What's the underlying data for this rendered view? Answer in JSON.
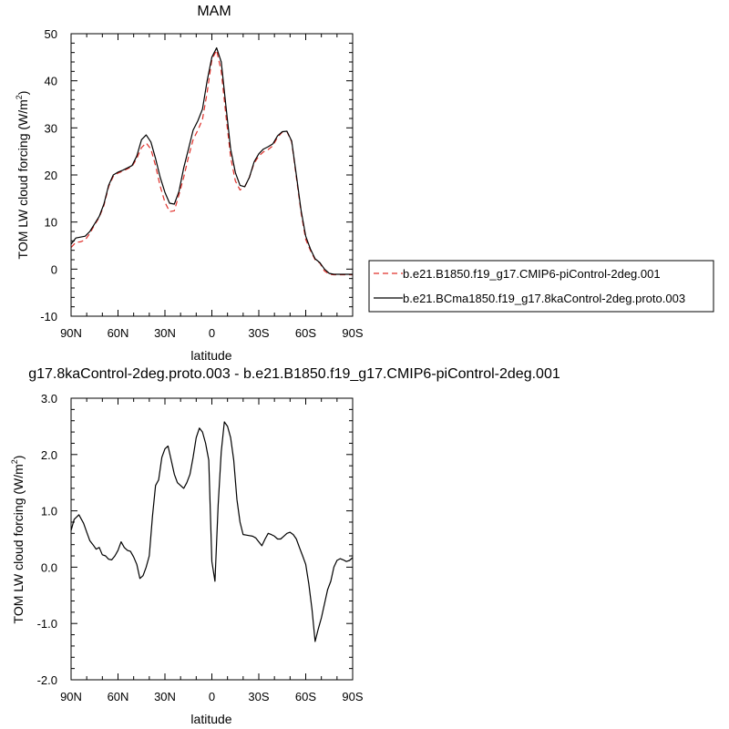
{
  "chart_data": [
    {
      "type": "line",
      "title": "MAM",
      "xlabel": "latitude",
      "ylabel": "TOM LW cloud forcing (W/m",
      "ylabel_sup": "2",
      "ylabel_end": ")",
      "ylim": [
        -10,
        50
      ],
      "xlim": [
        90,
        -90
      ],
      "yticks": [
        -10,
        0,
        10,
        20,
        30,
        40,
        50
      ],
      "ytick_labels": [
        "-10",
        "0",
        "10",
        "20",
        "30",
        "40",
        "50"
      ],
      "xticks": [
        90,
        60,
        30,
        0,
        -30,
        -60,
        -90
      ],
      "xtick_labels": [
        "90N",
        "60N",
        "30N",
        "0",
        "30S",
        "60S",
        "90S"
      ],
      "legend_position": "right",
      "series": [
        {
          "name": "b.e21.B1850.f19_g17.CMIP6-piControl-2deg.001",
          "color": "#e0302a",
          "dash": "dashed",
          "x": [
            90,
            87,
            84,
            81,
            78,
            75,
            72,
            69,
            66,
            63,
            60,
            57,
            54,
            51,
            48,
            45,
            42,
            39,
            36,
            33,
            30,
            27,
            24,
            21,
            18,
            15,
            12,
            9,
            6,
            3,
            0,
            -3,
            -6,
            -9,
            -12,
            -15,
            -18,
            -21,
            -24,
            -27,
            -30,
            -33,
            -36,
            -39,
            -42,
            -45,
            -48,
            -51,
            -54,
            -57,
            -60,
            -63,
            -66,
            -69,
            -72,
            -75,
            -78,
            -81,
            -84,
            -87,
            -90
          ],
          "y": [
            4.6,
            5.7,
            5.8,
            6.2,
            7.6,
            9.4,
            11.0,
            13.5,
            17.5,
            19.7,
            20.4,
            20.8,
            21.3,
            21.8,
            23.5,
            25.8,
            26.8,
            25.5,
            22.0,
            17.6,
            14.2,
            12.2,
            12.4,
            15.8,
            19.5,
            23.8,
            27.5,
            29.5,
            31.8,
            37.5,
            44.5,
            46.5,
            42.0,
            32.5,
            23.8,
            18.7,
            16.8,
            17.5,
            19.5,
            22.5,
            24.0,
            24.9,
            25.4,
            26.2,
            28.0,
            29.1,
            29.2,
            27.0,
            19.5,
            12.0,
            6.3,
            4.0,
            2.0,
            1.3,
            -0.4,
            -1.1,
            -1.2,
            -1.2,
            -1.2,
            -1.2,
            -1.2
          ]
        },
        {
          "name": "b.e21.BCma1850.f19_g17.8kaControl-2deg.proto.003",
          "color": "#000000",
          "dash": "solid",
          "x": [
            90,
            87,
            84,
            81,
            78,
            75,
            72,
            69,
            66,
            63,
            60,
            57,
            54,
            51,
            48,
            45,
            42,
            39,
            36,
            33,
            30,
            27,
            24,
            21,
            18,
            15,
            12,
            9,
            6,
            3,
            0,
            -3,
            -6,
            -9,
            -12,
            -15,
            -18,
            -21,
            -24,
            -27,
            -30,
            -33,
            -36,
            -39,
            -42,
            -45,
            -48,
            -51,
            -54,
            -57,
            -60,
            -63,
            -66,
            -69,
            -72,
            -75,
            -78,
            -81,
            -84,
            -87,
            -90
          ],
          "y": [
            5.3,
            6.6,
            6.8,
            7.0,
            8.0,
            9.6,
            11.2,
            13.8,
            17.8,
            20.0,
            20.6,
            21.0,
            21.5,
            22.0,
            24.0,
            27.5,
            28.5,
            27.0,
            23.5,
            19.5,
            16.3,
            14.0,
            13.8,
            16.5,
            21.5,
            25.5,
            29.5,
            31.5,
            34.0,
            40.0,
            45.0,
            47.0,
            44.0,
            34.5,
            25.5,
            20.5,
            17.8,
            17.5,
            19.5,
            22.8,
            24.5,
            25.5,
            26.0,
            26.6,
            28.3,
            29.2,
            29.3,
            27.2,
            20.0,
            12.5,
            7.0,
            4.3,
            2.2,
            1.4,
            0.0,
            -0.9,
            -1.1,
            -1.1,
            -1.1,
            -1.1,
            -1.1
          ]
        }
      ]
    },
    {
      "type": "line",
      "title": "g17.8kaControl-2deg.proto.003 - b.e21.B1850.f19_g17.CMIP6-piControl-2deg.001",
      "xlabel": "latitude",
      "ylabel": "TOM LW cloud forcing (W/m",
      "ylabel_sup": "2",
      "ylabel_end": ")",
      "ylim": [
        -2.0,
        3.0
      ],
      "xlim": [
        90,
        -90
      ],
      "yticks": [
        -2,
        -1,
        0,
        1,
        2,
        3
      ],
      "ytick_labels": [
        "-2.0",
        "-1.0",
        "0.0",
        "1.0",
        "2.0",
        "3.0"
      ],
      "xticks": [
        90,
        60,
        30,
        0,
        -30,
        -60,
        -90
      ],
      "xtick_labels": [
        "90N",
        "60N",
        "30N",
        "0",
        "30S",
        "60S",
        "90S"
      ],
      "series": [
        {
          "color": "#000000",
          "dash": "solid",
          "x": [
            90,
            88,
            85,
            82,
            80,
            78,
            76,
            74,
            72,
            70,
            68,
            66,
            64,
            62,
            60,
            58,
            56,
            54,
            52,
            50,
            48,
            46,
            44,
            42,
            40,
            38,
            36,
            34,
            32,
            30,
            28,
            26,
            24,
            22,
            20,
            18,
            16,
            14,
            12,
            10,
            8,
            6,
            4,
            2,
            0,
            -2,
            -4,
            -6,
            -8,
            -10,
            -12,
            -14,
            -16,
            -18,
            -20,
            -22,
            -24,
            -26,
            -28,
            -30,
            -32,
            -34,
            -36,
            -38,
            -40,
            -42,
            -44,
            -46,
            -48,
            -50,
            -52,
            -54,
            -56,
            -58,
            -60,
            -62,
            -64,
            -66,
            -68,
            -70,
            -72,
            -74,
            -76,
            -78,
            -80,
            -82,
            -84,
            -86,
            -88,
            -90
          ],
          "y": [
            0.65,
            0.85,
            0.93,
            0.78,
            0.62,
            0.47,
            0.4,
            0.32,
            0.35,
            0.22,
            0.2,
            0.14,
            0.13,
            0.2,
            0.3,
            0.45,
            0.35,
            0.3,
            0.28,
            0.18,
            0.05,
            -0.2,
            -0.15,
            0.0,
            0.2,
            0.9,
            1.45,
            1.55,
            1.95,
            2.1,
            2.15,
            1.9,
            1.65,
            1.5,
            1.45,
            1.4,
            1.5,
            1.65,
            1.95,
            2.3,
            2.47,
            2.4,
            2.2,
            1.9,
            0.1,
            -0.25,
            1.1,
            2.05,
            2.58,
            2.5,
            2.3,
            1.9,
            1.2,
            0.8,
            0.58,
            0.57,
            0.56,
            0.55,
            0.52,
            0.45,
            0.38,
            0.5,
            0.6,
            0.58,
            0.55,
            0.5,
            0.5,
            0.55,
            0.6,
            0.62,
            0.58,
            0.5,
            0.35,
            0.2,
            0.05,
            -0.3,
            -0.75,
            -1.32,
            -1.1,
            -0.9,
            -0.65,
            -0.4,
            -0.25,
            0.0,
            0.12,
            0.15,
            0.13,
            0.1,
            0.12,
            0.17
          ]
        }
      ]
    }
  ]
}
